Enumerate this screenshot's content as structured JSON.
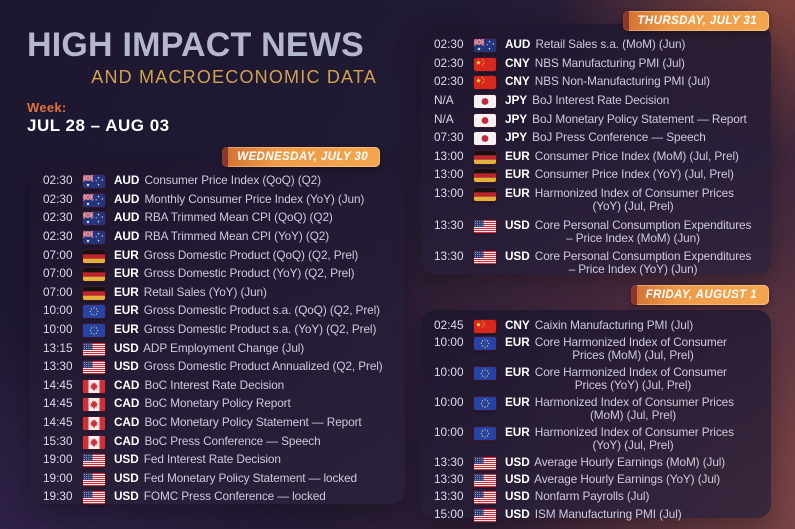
{
  "header": {
    "title": "HIGH IMPACT NEWS",
    "subtitle": "AND MACROECONOMIC DATA",
    "week_label": "Week:",
    "week_range": "JUL 28 – AUG 03"
  },
  "colors": {
    "ribbon_orange": "#ef9b49",
    "title_gray": "#b5b8cd",
    "subtitle_gold": "#d3a251",
    "week_orange": "#de753d",
    "background_dark": "#1c1630",
    "background_warm": "#4e3040"
  },
  "days": [
    {
      "id": "wednesday",
      "label": "WEDNESDAY, JULY 30",
      "events": [
        {
          "time": "02:30",
          "flag": "australia",
          "currency": "AUD",
          "text": "Consumer Price Index (QoQ) (Q2)"
        },
        {
          "time": "02:30",
          "flag": "australia",
          "currency": "AUD",
          "text": "Monthly Consumer Price Index (YoY) (Jun)"
        },
        {
          "time": "02:30",
          "flag": "australia",
          "currency": "AUD",
          "text": "RBA Trimmed Mean CPI (QoQ) (Q2)"
        },
        {
          "time": "02:30",
          "flag": "australia",
          "currency": "AUD",
          "text": "RBA Trimmed Mean CPI (YoY) (Q2)"
        },
        {
          "time": "07:00",
          "flag": "germany",
          "currency": "EUR",
          "text": "Gross Domestic Product (QoQ) (Q2, Prel)"
        },
        {
          "time": "07:00",
          "flag": "germany",
          "currency": "EUR",
          "text": "Gross Domestic Product (YoY) (Q2, Prel)"
        },
        {
          "time": "07:00",
          "flag": "germany",
          "currency": "EUR",
          "text": "Retail Sales (YoY) (Jun)"
        },
        {
          "time": "10:00",
          "flag": "eu",
          "currency": "EUR",
          "text": "Gross Domestic Product s.a. (QoQ) (Q2, Prel)"
        },
        {
          "time": "10:00",
          "flag": "eu",
          "currency": "EUR",
          "text": "Gross Domestic Product s.a. (YoY) (Q2, Prel)"
        },
        {
          "time": "13:15",
          "flag": "usa",
          "currency": "USD",
          "text": "ADP Employment Change (Jul)"
        },
        {
          "time": "13:30",
          "flag": "usa",
          "currency": "USD",
          "text": "Gross Domestic Product Annualized (Q2, Prel)"
        },
        {
          "time": "14:45",
          "flag": "canada",
          "currency": "CAD",
          "text": "BoC Interest Rate Decision"
        },
        {
          "time": "14:45",
          "flag": "canada",
          "currency": "CAD",
          "text": "BoC Monetary Policy Report"
        },
        {
          "time": "14:45",
          "flag": "canada",
          "currency": "CAD",
          "text": "BoC Monetary Policy Statement — Report"
        },
        {
          "time": "15:30",
          "flag": "canada",
          "currency": "CAD",
          "text": "BoC Press Conference — Speech"
        },
        {
          "time": "19:00",
          "flag": "usa",
          "currency": "USD",
          "text": "Fed Interest Rate Decision"
        },
        {
          "time": "19:00",
          "flag": "usa",
          "currency": "USD",
          "text": "Fed Monetary Policy Statement — locked"
        },
        {
          "time": "19:30",
          "flag": "usa",
          "currency": "USD",
          "text": "FOMC Press Conference — locked"
        }
      ]
    },
    {
      "id": "thursday",
      "label": "THURSDAY, JULY 31",
      "events": [
        {
          "time": "02:30",
          "flag": "australia",
          "currency": "AUD",
          "text": "Retail Sales s.a. (MoM) (Jun)"
        },
        {
          "time": "02:30",
          "flag": "china",
          "currency": "CNY",
          "text": "NBS Manufacturing PMI (Jul)"
        },
        {
          "time": "02:30",
          "flag": "china",
          "currency": "CNY",
          "text": "NBS Non-Manufacturing PMI (Jul)"
        },
        {
          "time": "N/A",
          "flag": "japan",
          "currency": "JPY",
          "text": "BoJ Interest Rate Decision"
        },
        {
          "time": "N/A",
          "flag": "japan",
          "currency": "JPY",
          "text": "BoJ Monetary Policy Statement — Report"
        },
        {
          "time": "07:30",
          "flag": "japan",
          "currency": "JPY",
          "text": "BoJ Press Conference — Speech"
        },
        {
          "time": "13:00",
          "flag": "germany",
          "currency": "EUR",
          "text": "Consumer Price Index (MoM) (Jul, Prel)"
        },
        {
          "time": "13:00",
          "flag": "germany",
          "currency": "EUR",
          "text": "Consumer Price Index (YoY) (Jul, Prel)"
        },
        {
          "time": "13:00",
          "flag": "germany",
          "currency": "EUR",
          "text": "Harmonized Index of Consumer Prices",
          "text2": "(YoY) (Jul, Prel)"
        },
        {
          "time": "13:30",
          "flag": "usa",
          "currency": "USD",
          "text": "Core Personal Consumption Expenditures",
          "text2": "– Price Index (MoM) (Jun)"
        },
        {
          "time": "13:30",
          "flag": "usa",
          "currency": "USD",
          "text": "Core Personal Consumption Expenditures",
          "text2": "– Price Index (YoY) (Jun)"
        }
      ]
    },
    {
      "id": "friday",
      "label": "FRIDAY, AUGUST 1",
      "events": [
        {
          "time": "02:45",
          "flag": "china",
          "currency": "CNY",
          "text": "Caixin Manufacturing PMI (Jul)"
        },
        {
          "time": "10:00",
          "flag": "eu",
          "currency": "EUR",
          "text": "Core Harmonized Index of Consumer",
          "text2": "Prices (MoM) (Jul, Prel)"
        },
        {
          "time": "10:00",
          "flag": "eu",
          "currency": "EUR",
          "text": "Core Harmonized Index of Consumer",
          "text2": "Prices (YoY) (Jul, Prel)"
        },
        {
          "time": "10:00",
          "flag": "eu",
          "currency": "EUR",
          "text": "Harmonized Index of Consumer Prices",
          "text2": "(MoM) (Jul, Prel)"
        },
        {
          "time": "10:00",
          "flag": "eu",
          "currency": "EUR",
          "text": "Harmonized Index of Consumer Prices",
          "text2": "(YoY) (Jul, Prel)"
        },
        {
          "time": "13:30",
          "flag": "usa",
          "currency": "USD",
          "text": "Average Hourly Earnings (MoM) (Jul)"
        },
        {
          "time": "13:30",
          "flag": "usa",
          "currency": "USD",
          "text": "Average Hourly Earnings (YoY) (Jul)"
        },
        {
          "time": "13:30",
          "flag": "usa",
          "currency": "USD",
          "text": "Nonfarm Payrolls (Jul)"
        },
        {
          "time": "15:00",
          "flag": "usa",
          "currency": "USD",
          "text": "ISM Manufacturing PMI (Jul)"
        }
      ]
    }
  ]
}
